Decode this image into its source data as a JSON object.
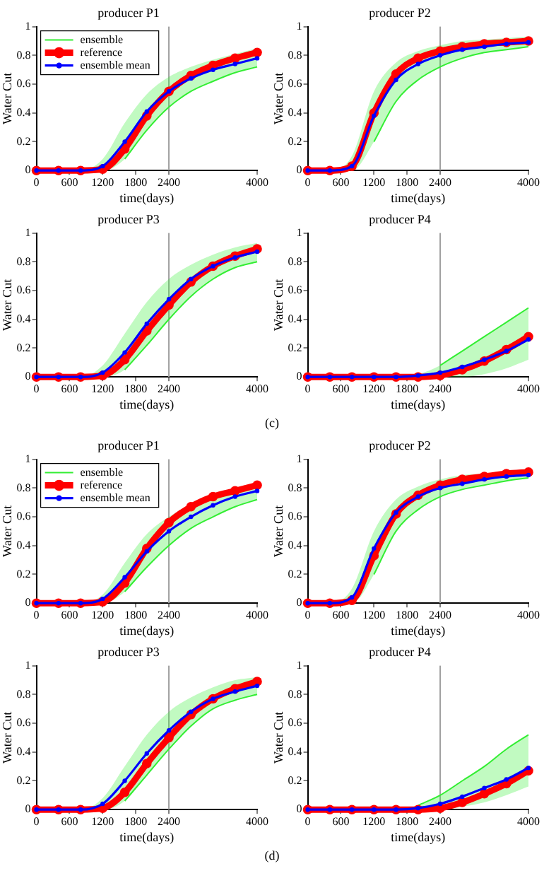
{
  "chart_data": [
    {
      "type": "line",
      "title": "producer P1",
      "xlabel": "time(days)",
      "ylabel": "Water Cut",
      "x": [
        0,
        400,
        800,
        1200,
        1600,
        2000,
        2400,
        2800,
        3200,
        3600,
        4000
      ],
      "xlim": [
        0,
        4000
      ],
      "xticks": [
        0,
        600,
        1200,
        1800,
        2400,
        4000
      ],
      "ylim": [
        0,
        1
      ],
      "yticks": [
        0,
        0.2,
        0.4,
        0.6,
        0.8,
        1
      ],
      "grid": false,
      "legend": "top left",
      "ref_lines": [
        {
          "axis": "x",
          "value": 2400,
          "color": "#a0a0a0"
        }
      ],
      "series": [
        {
          "name": "ensemble",
          "color": "#33ee33",
          "marker": "none",
          "values": [
            null,
            null,
            null,
            null,
            0.08,
            0.28,
            0.44,
            0.55,
            0.62,
            0.68,
            0.72
          ],
          "lower": [
            0,
            0,
            0,
            0,
            0.08,
            0.28,
            0.44,
            0.55,
            0.62,
            0.68,
            0.72
          ],
          "upper": [
            0,
            0,
            0,
            0.08,
            0.33,
            0.53,
            0.65,
            0.72,
            0.77,
            0.81,
            0.85
          ]
        },
        {
          "name": "reference",
          "color": "#ff0000",
          "marker": "circle",
          "values": [
            0,
            0,
            0,
            0.01,
            0.15,
            0.38,
            0.55,
            0.66,
            0.73,
            0.78,
            0.82
          ]
        },
        {
          "name": "ensemble mean",
          "color": "#0000ff",
          "marker": "circle",
          "values": [
            0,
            0,
            0,
            0.03,
            0.2,
            0.41,
            0.55,
            0.64,
            0.7,
            0.74,
            0.78
          ]
        }
      ]
    },
    {
      "type": "line",
      "title": "producer P2",
      "xlabel": "time(days)",
      "ylabel": "Water Cut",
      "x": [
        0,
        400,
        800,
        1200,
        1600,
        2000,
        2400,
        2800,
        3200,
        3600,
        4000
      ],
      "xlim": [
        0,
        4000
      ],
      "xticks": [
        0,
        600,
        1200,
        1800,
        2400,
        4000
      ],
      "ylim": [
        0,
        1
      ],
      "yticks": [
        0,
        0.2,
        0.4,
        0.6,
        0.8,
        1
      ],
      "grid": false,
      "ref_lines": [
        {
          "axis": "x",
          "value": 2400,
          "color": "#a0a0a0"
        }
      ],
      "series": [
        {
          "color": "#33ee33",
          "marker": "none",
          "values": [
            null,
            null,
            null,
            0.2,
            0.48,
            0.63,
            0.72,
            0.78,
            0.82,
            0.84,
            0.86
          ],
          "lower": [
            0,
            0,
            0,
            0.2,
            0.48,
            0.63,
            0.72,
            0.78,
            0.82,
            0.84,
            0.86
          ],
          "upper": [
            0,
            0,
            0.1,
            0.55,
            0.75,
            0.83,
            0.87,
            0.9,
            0.91,
            0.92,
            0.93
          ]
        },
        {
          "color": "#ff0000",
          "marker": "circle",
          "values": [
            0,
            0,
            0.03,
            0.4,
            0.67,
            0.78,
            0.83,
            0.86,
            0.88,
            0.89,
            0.9
          ]
        },
        {
          "color": "#0000ff",
          "marker": "circle",
          "values": [
            0,
            0,
            0.03,
            0.38,
            0.63,
            0.74,
            0.8,
            0.84,
            0.86,
            0.88,
            0.89
          ]
        }
      ]
    },
    {
      "type": "line",
      "title": "producer P3",
      "xlabel": "time(days)",
      "ylabel": "Water Cut",
      "x": [
        0,
        400,
        800,
        1200,
        1600,
        2000,
        2400,
        2800,
        3200,
        3600,
        4000
      ],
      "xlim": [
        0,
        4000
      ],
      "xticks": [
        0,
        600,
        1200,
        1800,
        2400,
        4000
      ],
      "ylim": [
        0,
        1
      ],
      "yticks": [
        0,
        0.2,
        0.4,
        0.6,
        0.8,
        1
      ],
      "grid": false,
      "ref_lines": [
        {
          "axis": "x",
          "value": 2400,
          "color": "#a0a0a0"
        }
      ],
      "series": [
        {
          "color": "#33ee33",
          "marker": "none",
          "values": [
            null,
            null,
            null,
            null,
            0.05,
            0.22,
            0.4,
            0.56,
            0.68,
            0.76,
            0.8
          ],
          "lower": [
            0,
            0,
            0,
            0,
            0.05,
            0.22,
            0.4,
            0.56,
            0.68,
            0.76,
            0.8
          ],
          "upper": [
            0,
            0,
            0,
            0.08,
            0.3,
            0.52,
            0.68,
            0.78,
            0.85,
            0.9,
            0.93
          ]
        },
        {
          "color": "#ff0000",
          "marker": "circle",
          "values": [
            0,
            0,
            0,
            0.01,
            0.12,
            0.32,
            0.5,
            0.66,
            0.77,
            0.84,
            0.89
          ]
        },
        {
          "color": "#0000ff",
          "marker": "circle",
          "values": [
            0,
            0,
            0,
            0.03,
            0.17,
            0.37,
            0.54,
            0.68,
            0.77,
            0.83,
            0.87
          ]
        }
      ]
    },
    {
      "type": "line",
      "title": "producer P4",
      "xlabel": "time(days)",
      "ylabel": "Water Cut",
      "x": [
        0,
        400,
        800,
        1200,
        1600,
        2000,
        2400,
        2800,
        3200,
        3600,
        4000
      ],
      "xlim": [
        0,
        4000
      ],
      "xticks": [
        0,
        600,
        1200,
        1800,
        2400,
        4000
      ],
      "ylim": [
        0,
        1
      ],
      "yticks": [
        0,
        0.2,
        0.4,
        0.6,
        0.8,
        1
      ],
      "grid": false,
      "annotations": [
        "(c)"
      ],
      "ref_lines": [
        {
          "axis": "x",
          "value": 2400,
          "color": "#a0a0a0"
        }
      ],
      "series": [
        {
          "color": "#33ee33",
          "marker": "none",
          "values": [
            null,
            null,
            null,
            null,
            null,
            null,
            0.08,
            0.18,
            0.28,
            0.38,
            0.48
          ],
          "lower": [
            0,
            0,
            0,
            0,
            0,
            0,
            0,
            0,
            0.02,
            0.06,
            0.12
          ],
          "upper": [
            0,
            0,
            0,
            0,
            0,
            0.02,
            0.08,
            0.18,
            0.28,
            0.38,
            0.48
          ]
        },
        {
          "color": "#ff0000",
          "marker": "circle",
          "values": [
            0,
            0,
            0,
            0,
            0,
            0,
            0.01,
            0.05,
            0.11,
            0.19,
            0.28
          ]
        },
        {
          "color": "#0000ff",
          "marker": "circle",
          "values": [
            0,
            0,
            0,
            0,
            0,
            0.01,
            0.03,
            0.07,
            0.12,
            0.18,
            0.26
          ]
        }
      ]
    },
    {
      "type": "line",
      "title": "producer P1",
      "xlabel": "time(days)",
      "ylabel": "Water Cut",
      "x": [
        0,
        400,
        800,
        1200,
        1600,
        2000,
        2400,
        2800,
        3200,
        3600,
        4000
      ],
      "xlim": [
        0,
        4000
      ],
      "xticks": [
        0,
        600,
        1200,
        1800,
        2400,
        4000
      ],
      "ylim": [
        0,
        1
      ],
      "yticks": [
        0,
        0.2,
        0.4,
        0.6,
        0.8,
        1
      ],
      "grid": false,
      "legend": "top left",
      "ref_lines": [
        {
          "axis": "x",
          "value": 2400,
          "color": "#a0a0a0"
        }
      ],
      "series": [
        {
          "name": "ensemble",
          "color": "#33ee33",
          "marker": "none",
          "values": [
            null,
            null,
            null,
            null,
            0.08,
            0.25,
            0.4,
            0.52,
            0.6,
            0.67,
            0.72
          ],
          "lower": [
            0,
            0,
            0,
            0,
            0.08,
            0.25,
            0.4,
            0.52,
            0.6,
            0.67,
            0.72
          ],
          "upper": [
            0,
            0,
            0,
            0.06,
            0.28,
            0.48,
            0.6,
            0.68,
            0.74,
            0.78,
            0.82
          ]
        },
        {
          "name": "reference",
          "color": "#ff0000",
          "marker": "circle",
          "values": [
            0,
            0,
            0,
            0.01,
            0.14,
            0.38,
            0.56,
            0.67,
            0.74,
            0.78,
            0.82
          ]
        },
        {
          "name": "ensemble mean",
          "color": "#0000ff",
          "marker": "circle",
          "values": [
            0,
            0,
            0,
            0.03,
            0.18,
            0.36,
            0.5,
            0.6,
            0.68,
            0.74,
            0.78
          ]
        }
      ]
    },
    {
      "type": "line",
      "title": "producer P2",
      "xlabel": "time(days)",
      "ylabel": "Water Cut",
      "x": [
        0,
        400,
        800,
        1200,
        1600,
        2000,
        2400,
        2800,
        3200,
        3600,
        4000
      ],
      "xlim": [
        0,
        4000
      ],
      "xticks": [
        0,
        600,
        1200,
        1800,
        2400,
        4000
      ],
      "ylim": [
        0,
        1
      ],
      "yticks": [
        0,
        0.2,
        0.4,
        0.6,
        0.8,
        1
      ],
      "grid": false,
      "ref_lines": [
        {
          "axis": "x",
          "value": 2400,
          "color": "#a0a0a0"
        }
      ],
      "series": [
        {
          "color": "#33ee33",
          "marker": "none",
          "values": [
            null,
            null,
            null,
            0.2,
            0.5,
            0.65,
            0.74,
            0.79,
            0.82,
            0.85,
            0.87
          ],
          "lower": [
            0,
            0,
            0,
            0.2,
            0.5,
            0.65,
            0.74,
            0.79,
            0.82,
            0.85,
            0.87
          ],
          "upper": [
            0,
            0,
            0.1,
            0.5,
            0.72,
            0.81,
            0.86,
            0.89,
            0.9,
            0.91,
            0.92
          ]
        },
        {
          "color": "#ff0000",
          "marker": "circle",
          "values": [
            0,
            0,
            0.02,
            0.33,
            0.62,
            0.75,
            0.82,
            0.86,
            0.88,
            0.9,
            0.91
          ]
        },
        {
          "color": "#0000ff",
          "marker": "circle",
          "values": [
            0,
            0,
            0.04,
            0.38,
            0.63,
            0.74,
            0.8,
            0.83,
            0.86,
            0.88,
            0.89
          ]
        }
      ]
    },
    {
      "type": "line",
      "title": "producer P3",
      "xlabel": "time(days)",
      "ylabel": "Water Cut",
      "x": [
        0,
        400,
        800,
        1200,
        1600,
        2000,
        2400,
        2800,
        3200,
        3600,
        4000
      ],
      "xlim": [
        0,
        4000
      ],
      "xticks": [
        0,
        600,
        1200,
        1800,
        2400,
        4000
      ],
      "ylim": [
        0,
        1
      ],
      "yticks": [
        0,
        0.2,
        0.4,
        0.6,
        0.8,
        1
      ],
      "grid": false,
      "ref_lines": [
        {
          "axis": "x",
          "value": 2400,
          "color": "#a0a0a0"
        }
      ],
      "series": [
        {
          "color": "#33ee33",
          "marker": "none",
          "values": [
            null,
            null,
            null,
            null,
            0.06,
            0.24,
            0.42,
            0.58,
            0.7,
            0.76,
            0.8
          ],
          "lower": [
            0,
            0,
            0,
            0,
            0.06,
            0.24,
            0.42,
            0.58,
            0.7,
            0.76,
            0.8
          ],
          "upper": [
            0,
            0,
            0,
            0.08,
            0.3,
            0.52,
            0.68,
            0.78,
            0.85,
            0.9,
            0.92
          ]
        },
        {
          "color": "#ff0000",
          "marker": "circle",
          "values": [
            0,
            0,
            0,
            0.01,
            0.12,
            0.32,
            0.5,
            0.66,
            0.77,
            0.84,
            0.89
          ]
        },
        {
          "color": "#0000ff",
          "marker": "circle",
          "values": [
            0,
            0,
            0,
            0.04,
            0.2,
            0.39,
            0.55,
            0.68,
            0.77,
            0.82,
            0.86
          ]
        }
      ]
    },
    {
      "type": "line",
      "title": "producer P4",
      "xlabel": "time(days)",
      "ylabel": "Water Cut",
      "x": [
        0,
        400,
        800,
        1200,
        1600,
        2000,
        2400,
        2800,
        3200,
        3600,
        4000
      ],
      "xlim": [
        0,
        4000
      ],
      "xticks": [
        0,
        600,
        1200,
        1800,
        2400,
        4000
      ],
      "ylim": [
        0,
        1
      ],
      "yticks": [
        0,
        0.2,
        0.4,
        0.6,
        0.8,
        1
      ],
      "grid": false,
      "annotations": [
        "(d)"
      ],
      "ref_lines": [
        {
          "axis": "x",
          "value": 2400,
          "color": "#a0a0a0"
        }
      ],
      "series": [
        {
          "color": "#33ee33",
          "marker": "none",
          "values": [
            null,
            null,
            null,
            null,
            null,
            0.03,
            0.1,
            0.2,
            0.3,
            0.42,
            0.52
          ],
          "lower": [
            0,
            0,
            0,
            0,
            0,
            0,
            0,
            0.02,
            0.05,
            0.1,
            0.16
          ],
          "upper": [
            0,
            0,
            0,
            0,
            0,
            0.03,
            0.1,
            0.2,
            0.3,
            0.42,
            0.52
          ]
        },
        {
          "color": "#ff0000",
          "marker": "circle",
          "values": [
            0,
            0,
            0,
            0,
            0,
            0,
            0.01,
            0.05,
            0.11,
            0.18,
            0.27
          ]
        },
        {
          "color": "#0000ff",
          "marker": "circle",
          "values": [
            0,
            0,
            0,
            0,
            0,
            0.01,
            0.04,
            0.09,
            0.15,
            0.21,
            0.29
          ]
        }
      ]
    }
  ]
}
